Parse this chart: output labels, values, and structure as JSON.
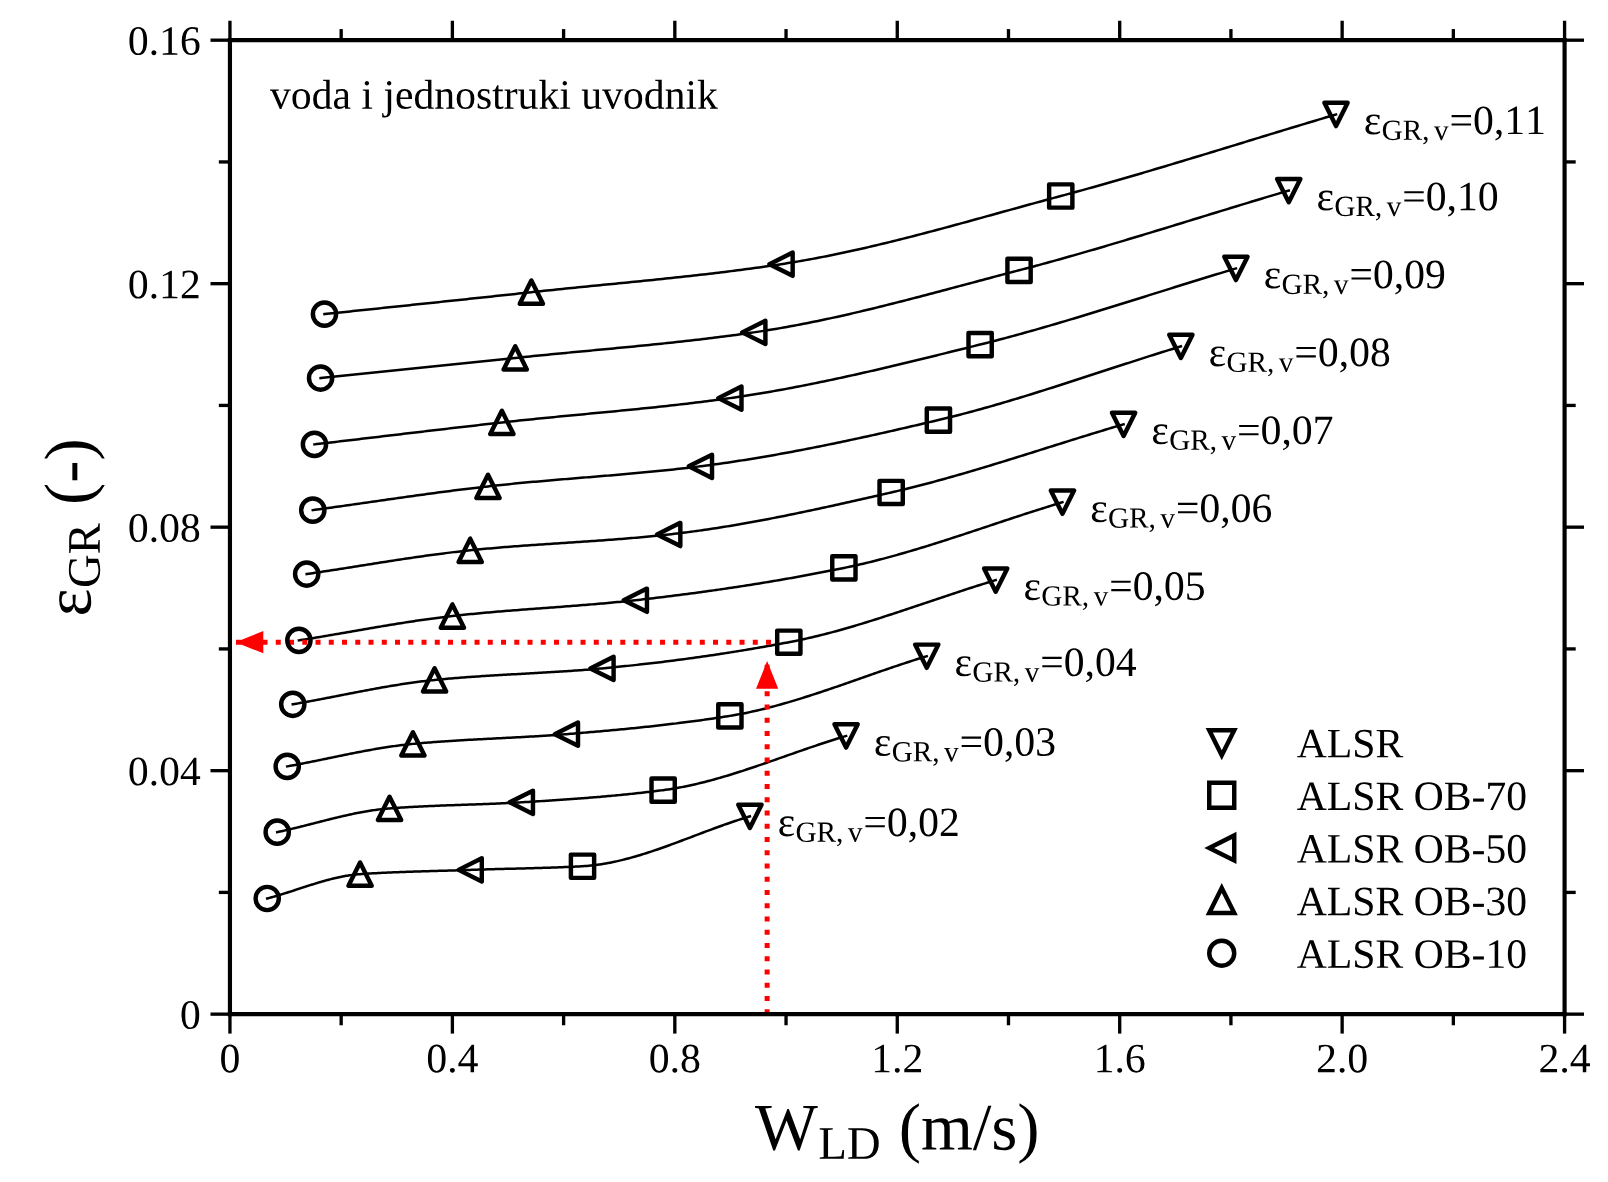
{
  "chart_data": {
    "type": "scatter",
    "xlabel": "W$_{LD}$ (m/s)",
    "ylabel": "ε$_{GR}$ (-)",
    "xlim": [
      0,
      2.4
    ],
    "ylim": [
      0,
      0.16
    ],
    "xticks": [
      0,
      {
        "value": 0.4,
        "label": "0.4"
      },
      {
        "value": 0.8,
        "label": "0.8"
      },
      {
        "value": 1.2,
        "label": "1.2"
      },
      {
        "value": 1.6,
        "label": "1.6"
      },
      {
        "value": 2.0,
        "label": "2.0"
      },
      {
        "value": 2.4,
        "label": "2.4"
      }
    ],
    "yticks": [
      0,
      0.04,
      0.08,
      0.12,
      0.16
    ],
    "grid": false,
    "legend": "bottom right",
    "series": [
      {
        "name": "ALSR",
        "marker": "triangle_down",
        "color": "#000000",
        "x": [
          0.935,
          1.108,
          1.253,
          1.377,
          1.497,
          1.607,
          1.71,
          1.809,
          1.904,
          1.989
        ],
        "values": [
          0.0325,
          0.0457,
          0.0588,
          0.0713,
          0.0841,
          0.0969,
          0.1097,
          0.1225,
          0.1353,
          0.1478
        ]
      },
      {
        "name": "ALSR OB-70",
        "marker": "square",
        "color": "#000000",
        "x": [
          0.634,
          0.779,
          0.899,
          1.005,
          1.104,
          1.189,
          1.274,
          1.349,
          1.419,
          1.494
        ],
        "values": [
          0.0243,
          0.0368,
          0.049,
          0.0611,
          0.0733,
          0.0857,
          0.0976,
          0.11,
          0.1222,
          0.1344
        ]
      },
      {
        "name": "ALSR OB-50",
        "marker": "triangle_left",
        "color": "#000000",
        "x": [
          0.432,
          0.524,
          0.605,
          0.669,
          0.729,
          0.789,
          0.846,
          0.899,
          0.942,
          0.991
        ],
        "values": [
          0.0237,
          0.0348,
          0.046,
          0.0568,
          0.068,
          0.0788,
          0.09,
          0.1012,
          0.112,
          0.1232
        ]
      },
      {
        "name": "ALSR OB-30",
        "marker": "triangle",
        "color": "#000000",
        "x": [
          0.234,
          0.287,
          0.329,
          0.368,
          0.4,
          0.432,
          0.464,
          0.489,
          0.513,
          0.542
        ],
        "values": [
          0.023,
          0.0338,
          0.0444,
          0.0549,
          0.0654,
          0.0762,
          0.0867,
          0.0972,
          0.1078,
          0.1186
        ]
      },
      {
        "name": "ALSR OB-10",
        "marker": "circle",
        "color": "#000000",
        "x": [
          0.067,
          0.085,
          0.103,
          0.113,
          0.124,
          0.138,
          0.149,
          0.152,
          0.163,
          0.17
        ],
        "values": [
          0.019,
          0.0299,
          0.0407,
          0.0509,
          0.0614,
          0.0723,
          0.0828,
          0.0936,
          0.1045,
          0.115
        ]
      },
      {
        "type": "line",
        "color": "#000000",
        "line_style": "solid",
        "x": [
          0.067,
          0.234,
          0.432,
          0.634,
          0.935
        ],
        "values": [
          0.019,
          0.023,
          0.0237,
          0.0243,
          0.0325
        ]
      },
      {
        "type": "line",
        "color": "#000000",
        "line_style": "solid",
        "x": [
          0.085,
          0.287,
          0.524,
          0.779,
          1.108
        ],
        "values": [
          0.0299,
          0.0338,
          0.0348,
          0.0368,
          0.0457
        ]
      },
      {
        "type": "line",
        "color": "#000000",
        "line_style": "solid",
        "x": [
          0.103,
          0.329,
          0.605,
          0.899,
          1.253
        ],
        "values": [
          0.0407,
          0.0444,
          0.046,
          0.049,
          0.0588
        ]
      },
      {
        "type": "line",
        "color": "#000000",
        "line_style": "solid",
        "x": [
          0.113,
          0.368,
          0.669,
          1.005,
          1.377
        ],
        "values": [
          0.0509,
          0.0549,
          0.0568,
          0.0611,
          0.0713
        ]
      },
      {
        "type": "line",
        "color": "#000000",
        "line_style": "solid",
        "x": [
          0.124,
          0.4,
          0.729,
          1.104,
          1.497
        ],
        "values": [
          0.0614,
          0.0654,
          0.068,
          0.0733,
          0.0841
        ]
      },
      {
        "type": "line",
        "color": "#000000",
        "line_style": "solid",
        "x": [
          0.138,
          0.432,
          0.789,
          1.189,
          1.607
        ],
        "values": [
          0.0723,
          0.0762,
          0.0788,
          0.0857,
          0.0969
        ]
      },
      {
        "type": "line",
        "color": "#000000",
        "line_style": "solid",
        "x": [
          0.149,
          0.464,
          0.846,
          1.274,
          1.71
        ],
        "values": [
          0.0828,
          0.0867,
          0.09,
          0.0976,
          0.1097
        ]
      },
      {
        "type": "line",
        "color": "#000000",
        "line_style": "solid",
        "x": [
          0.152,
          0.489,
          0.899,
          1.349,
          1.809
        ],
        "values": [
          0.0936,
          0.0972,
          0.1012,
          0.11,
          0.1225
        ]
      },
      {
        "type": "line",
        "color": "#000000",
        "line_style": "solid",
        "x": [
          0.163,
          0.513,
          0.942,
          1.419,
          1.904
        ],
        "values": [
          0.1045,
          0.1078,
          0.112,
          0.1222,
          0.1353
        ]
      },
      {
        "type": "line",
        "color": "#000000",
        "line_style": "solid",
        "x": [
          0.17,
          0.542,
          0.991,
          1.494,
          1.989
        ],
        "values": [
          0.115,
          0.1186,
          0.1232,
          0.1344,
          0.1478
        ]
      },
      {
        "type": "line",
        "color": "#ff0000",
        "line_style": "dotted",
        "x": [
          0.966,
          0.966
        ],
        "values": [
          0,
          0.058
        ]
      },
      {
        "type": "line",
        "color": "#ff0000",
        "line_style": "dotted",
        "x": [
          0.973,
          0.01
        ],
        "values": [
          0.0611,
          0.0611
        ]
      }
    ],
    "annotations": [
      "voda i jednostruki uvodnik",
      {
        "text": "ε$_{GR,v}$=0,02",
        "x": 0.935,
        "y": 0.0325
      },
      {
        "text": "ε$_{GR,v}$=0,03",
        "x": 1.108,
        "y": 0.0457
      },
      {
        "text": "ε$_{GR,v}$=0,04",
        "x": 1.253,
        "y": 0.0588
      },
      {
        "text": "ε$_{GR,v}$=0,05",
        "x": 1.377,
        "y": 0.0713
      },
      {
        "text": "ε$_{GR,v}$=0,06",
        "x": 1.497,
        "y": 0.0841
      },
      {
        "text": "ε$_{GR,v}$=0,07",
        "x": 1.607,
        "y": 0.0969
      },
      {
        "text": "ε$_{GR,v}$=0,08",
        "x": 1.71,
        "y": 0.1097
      },
      {
        "text": "ε$_{GR,v}$=0,09",
        "x": 1.809,
        "y": 0.1225
      },
      {
        "text": "ε$_{GR,v}$=0,10",
        "x": 1.904,
        "y": 0.1353
      },
      {
        "text": "ε$_{GR,v}$=0,11",
        "x": 1.989,
        "y": 0.1478
      }
    ]
  }
}
